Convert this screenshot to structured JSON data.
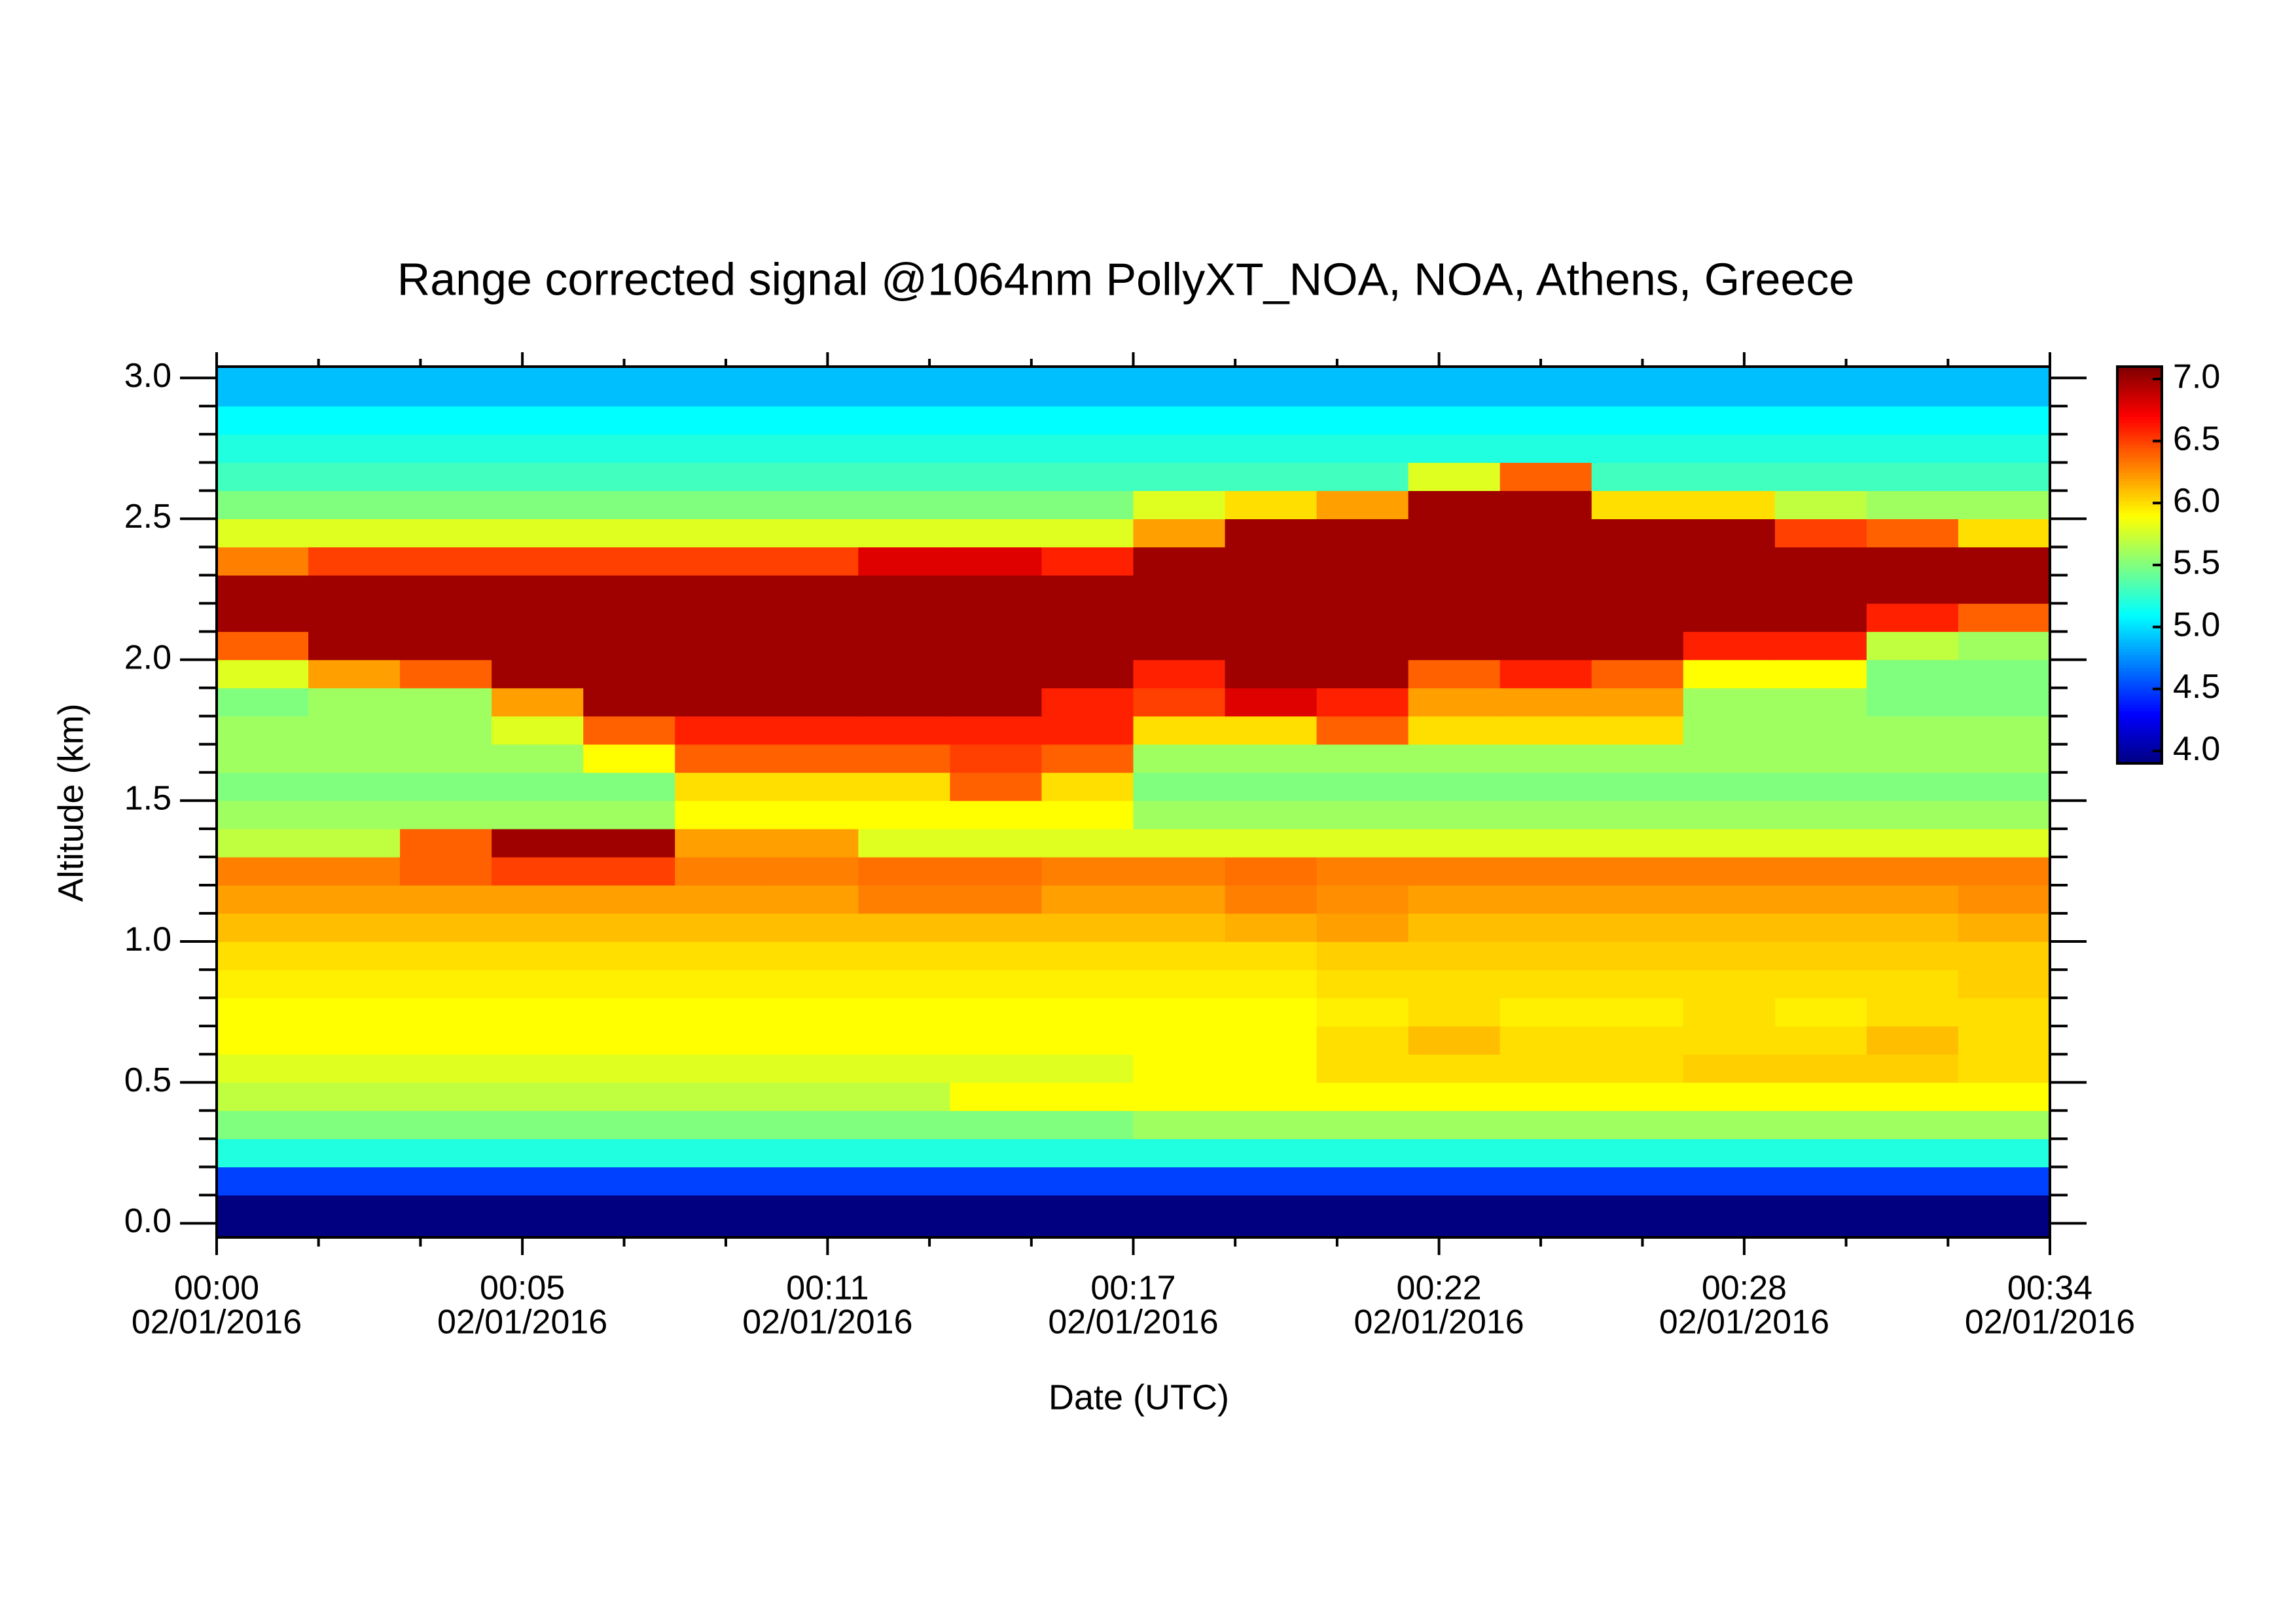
{
  "chart_data": {
    "type": "heatmap",
    "title": "Range corrected signal @1064nm  PollyXT_NOA, NOA, Athens, Greece",
    "xlabel": "Date (UTC)",
    "ylabel": "Altitude (km)",
    "colormap": "jet",
    "xlim": [
      0,
      34
    ],
    "xticks": [
      {
        "value": 0,
        "label": "00:00"
      },
      {
        "value": 5.67,
        "label": "00:05"
      },
      {
        "value": 11.33,
        "label": "00:11"
      },
      {
        "value": 17,
        "label": "00:17"
      },
      {
        "value": 22.67,
        "label": "00:22"
      },
      {
        "value": 28.33,
        "label": "00:28"
      },
      {
        "value": 34,
        "label": "00:34"
      }
    ],
    "xtick_dates": [
      "02/01/2016",
      "02/01/2016",
      "02/01/2016",
      "02/01/2016",
      "02/01/2016",
      "02/01/2016",
      "02/01/2016"
    ],
    "ylim": [
      -0.05,
      3.04
    ],
    "yticks": [
      {
        "value": 0,
        "label": "0.0"
      },
      0.5,
      {
        "value": 1,
        "label": "1.0"
      },
      1.5,
      {
        "value": 2,
        "label": "2.0"
      },
      2.5,
      {
        "value": 3,
        "label": "3.0"
      }
    ],
    "zlim": [
      3.9,
      7.1
    ],
    "zticks": [
      {
        "value": 4,
        "label": "4.0"
      },
      4.5,
      {
        "value": 5,
        "label": "5.0"
      },
      5.5,
      {
        "value": 6,
        "label": "6.0"
      },
      6.5,
      {
        "value": 7,
        "label": "7.0"
      }
    ],
    "x_bins": [
      0,
      1.7,
      3.4,
      5.1,
      6.8,
      8.5,
      10.2,
      11.9,
      13.6,
      15.3,
      17,
      18.7,
      20.4,
      22.1,
      23.8,
      25.5,
      27.2,
      28.9,
      30.6,
      32.3,
      34
    ],
    "y_bins": [
      -0.05,
      0.1,
      0.2,
      0.3,
      0.4,
      0.5,
      0.6,
      0.7,
      0.8,
      0.9,
      1.0,
      1.1,
      1.2,
      1.3,
      1.4,
      1.5,
      1.6,
      1.7,
      1.8,
      1.9,
      2.0,
      2.1,
      2.2,
      2.3,
      2.4,
      2.5,
      2.6,
      2.7,
      2.8,
      2.9,
      3.04
    ],
    "z": [
      [
        3.9,
        3.9,
        3.9,
        3.9,
        3.9,
        3.9,
        3.9,
        3.9,
        3.9,
        3.9,
        3.9,
        3.9,
        3.9,
        3.9,
        3.9,
        3.9,
        3.9,
        3.9,
        3.9,
        3.9
      ],
      [
        4.5,
        4.5,
        4.5,
        4.5,
        4.5,
        4.5,
        4.5,
        4.5,
        4.5,
        4.5,
        4.5,
        4.5,
        4.5,
        4.5,
        4.5,
        4.5,
        4.5,
        4.5,
        4.5,
        4.5
      ],
      [
        5.2,
        5.2,
        5.2,
        5.2,
        5.2,
        5.2,
        5.2,
        5.2,
        5.2,
        5.2,
        5.2,
        5.2,
        5.2,
        5.2,
        5.2,
        5.2,
        5.2,
        5.2,
        5.2,
        5.2
      ],
      [
        5.5,
        5.5,
        5.5,
        5.5,
        5.5,
        5.5,
        5.5,
        5.5,
        5.5,
        5.5,
        5.6,
        5.6,
        5.6,
        5.6,
        5.6,
        5.6,
        5.6,
        5.6,
        5.6,
        5.6
      ],
      [
        5.7,
        5.7,
        5.7,
        5.7,
        5.7,
        5.7,
        5.7,
        5.7,
        5.9,
        5.9,
        5.9,
        5.9,
        5.9,
        5.9,
        5.9,
        5.9,
        5.9,
        5.9,
        5.9,
        5.9
      ],
      [
        5.8,
        5.8,
        5.8,
        5.8,
        5.8,
        5.8,
        5.8,
        5.8,
        5.8,
        5.8,
        5.9,
        5.9,
        6.0,
        6.0,
        6.0,
        6.0,
        6.05,
        6.05,
        6.05,
        6.0
      ],
      [
        5.9,
        5.9,
        5.9,
        5.9,
        5.9,
        5.9,
        5.9,
        5.9,
        5.9,
        5.9,
        5.9,
        5.9,
        6.0,
        6.1,
        6.0,
        6.0,
        6.0,
        6.0,
        6.1,
        6.0
      ],
      [
        5.9,
        5.9,
        5.9,
        5.9,
        5.9,
        5.9,
        5.9,
        5.9,
        5.9,
        5.9,
        5.9,
        5.9,
        5.95,
        6.0,
        5.95,
        5.95,
        6.0,
        5.95,
        6.0,
        6.0
      ],
      [
        5.95,
        5.95,
        5.95,
        5.95,
        5.95,
        5.95,
        5.95,
        5.95,
        5.95,
        5.95,
        5.95,
        5.95,
        6.0,
        6.0,
        6.0,
        6.0,
        6.0,
        6.0,
        6.0,
        6.05
      ],
      [
        6.0,
        6.0,
        6.0,
        6.0,
        6.0,
        6.0,
        6.0,
        6.0,
        6.0,
        6.0,
        6.0,
        6.0,
        6.05,
        6.05,
        6.05,
        6.05,
        6.05,
        6.05,
        6.05,
        6.05
      ],
      [
        6.1,
        6.1,
        6.1,
        6.1,
        6.1,
        6.1,
        6.1,
        6.1,
        6.1,
        6.1,
        6.1,
        6.15,
        6.2,
        6.1,
        6.1,
        6.1,
        6.1,
        6.1,
        6.1,
        6.15
      ],
      [
        6.2,
        6.2,
        6.2,
        6.2,
        6.2,
        6.2,
        6.2,
        6.3,
        6.3,
        6.2,
        6.2,
        6.3,
        6.25,
        6.2,
        6.2,
        6.2,
        6.2,
        6.2,
        6.2,
        6.25
      ],
      [
        6.3,
        6.3,
        6.4,
        6.5,
        6.5,
        6.3,
        6.3,
        6.35,
        6.35,
        6.3,
        6.3,
        6.35,
        6.3,
        6.3,
        6.3,
        6.3,
        6.3,
        6.3,
        6.3,
        6.3
      ],
      [
        5.7,
        5.7,
        6.4,
        7.0,
        7.0,
        6.2,
        6.2,
        5.8,
        5.8,
        5.8,
        5.8,
        5.8,
        5.8,
        5.8,
        5.8,
        5.8,
        5.8,
        5.8,
        5.8,
        5.8
      ],
      [
        5.6,
        5.6,
        5.6,
        5.6,
        5.6,
        5.9,
        5.9,
        5.9,
        5.9,
        5.9,
        5.6,
        5.6,
        5.6,
        5.6,
        5.6,
        5.6,
        5.6,
        5.6,
        5.6,
        5.6
      ],
      [
        5.5,
        5.5,
        5.5,
        5.5,
        5.5,
        6.0,
        6.0,
        6.0,
        6.4,
        6.0,
        5.5,
        5.5,
        5.5,
        5.5,
        5.5,
        5.5,
        5.5,
        5.5,
        5.5,
        5.5
      ],
      [
        5.6,
        5.6,
        5.6,
        5.6,
        5.9,
        6.4,
        6.4,
        6.4,
        6.5,
        6.4,
        5.6,
        5.6,
        5.6,
        5.6,
        5.6,
        5.6,
        5.6,
        5.6,
        5.6,
        5.6
      ],
      [
        5.6,
        5.6,
        5.6,
        5.8,
        6.4,
        6.6,
        6.6,
        6.6,
        6.6,
        6.6,
        6.0,
        6.0,
        6.4,
        6.0,
        6.0,
        6.0,
        5.6,
        5.6,
        5.6,
        5.6
      ],
      [
        5.5,
        5.6,
        5.6,
        6.2,
        7.0,
        7.0,
        7.0,
        7.0,
        7.0,
        6.6,
        6.5,
        6.8,
        6.6,
        6.2,
        6.2,
        6.2,
        5.6,
        5.6,
        5.5,
        5.5
      ],
      [
        5.8,
        6.2,
        6.4,
        7.0,
        7.0,
        7.0,
        7.0,
        7.0,
        7.0,
        7.0,
        6.6,
        7.0,
        7.0,
        6.4,
        6.6,
        6.4,
        5.9,
        5.9,
        5.5,
        5.5
      ],
      [
        6.4,
        7.0,
        7.0,
        7.0,
        7.0,
        7.0,
        7.0,
        7.0,
        7.0,
        7.0,
        7.0,
        7.0,
        7.0,
        7.0,
        7.0,
        7.0,
        6.6,
        6.6,
        5.7,
        5.6
      ],
      [
        7.0,
        7.0,
        7.0,
        7.0,
        7.0,
        7.0,
        7.0,
        7.0,
        7.0,
        7.0,
        7.0,
        7.0,
        7.0,
        7.0,
        7.0,
        7.0,
        7.0,
        7.0,
        6.6,
        6.4
      ],
      [
        7.0,
        7.0,
        7.0,
        7.0,
        7.0,
        7.0,
        7.0,
        7.0,
        7.0,
        7.0,
        7.0,
        7.0,
        7.0,
        7.0,
        7.0,
        7.0,
        7.0,
        7.0,
        7.0,
        7.0
      ],
      [
        6.3,
        6.5,
        6.5,
        6.5,
        6.5,
        6.5,
        6.5,
        6.8,
        6.8,
        6.6,
        7.0,
        7.0,
        7.0,
        7.0,
        7.0,
        7.0,
        7.0,
        7.0,
        7.0,
        7.0
      ],
      [
        5.8,
        5.8,
        5.8,
        5.8,
        5.8,
        5.8,
        5.8,
        5.8,
        5.8,
        5.8,
        6.2,
        7.0,
        7.0,
        7.0,
        7.0,
        7.0,
        7.0,
        6.5,
        6.4,
        6.0
      ],
      [
        5.5,
        5.5,
        5.5,
        5.5,
        5.5,
        5.5,
        5.5,
        5.5,
        5.5,
        5.5,
        5.8,
        6.0,
        6.2,
        7.0,
        7.0,
        6.0,
        6.0,
        5.7,
        5.6,
        5.6
      ],
      [
        5.3,
        5.3,
        5.3,
        5.3,
        5.3,
        5.3,
        5.3,
        5.3,
        5.3,
        5.3,
        5.3,
        5.3,
        5.3,
        5.8,
        6.4,
        5.3,
        5.3,
        5.3,
        5.3,
        5.3
      ],
      [
        5.2,
        5.2,
        5.2,
        5.2,
        5.2,
        5.2,
        5.2,
        5.2,
        5.2,
        5.2,
        5.2,
        5.2,
        5.2,
        5.2,
        5.2,
        5.2,
        5.2,
        5.2,
        5.2,
        5.2
      ],
      [
        5.1,
        5.1,
        5.1,
        5.1,
        5.1,
        5.1,
        5.1,
        5.1,
        5.1,
        5.1,
        5.1,
        5.1,
        5.1,
        5.1,
        5.1,
        5.1,
        5.1,
        5.1,
        5.1,
        5.1
      ],
      [
        4.9,
        4.9,
        4.9,
        4.9,
        4.9,
        4.9,
        4.9,
        4.9,
        4.9,
        4.9,
        4.9,
        4.9,
        4.9,
        4.9,
        4.9,
        4.9,
        4.9,
        4.9,
        4.9,
        4.9
      ]
    ]
  }
}
